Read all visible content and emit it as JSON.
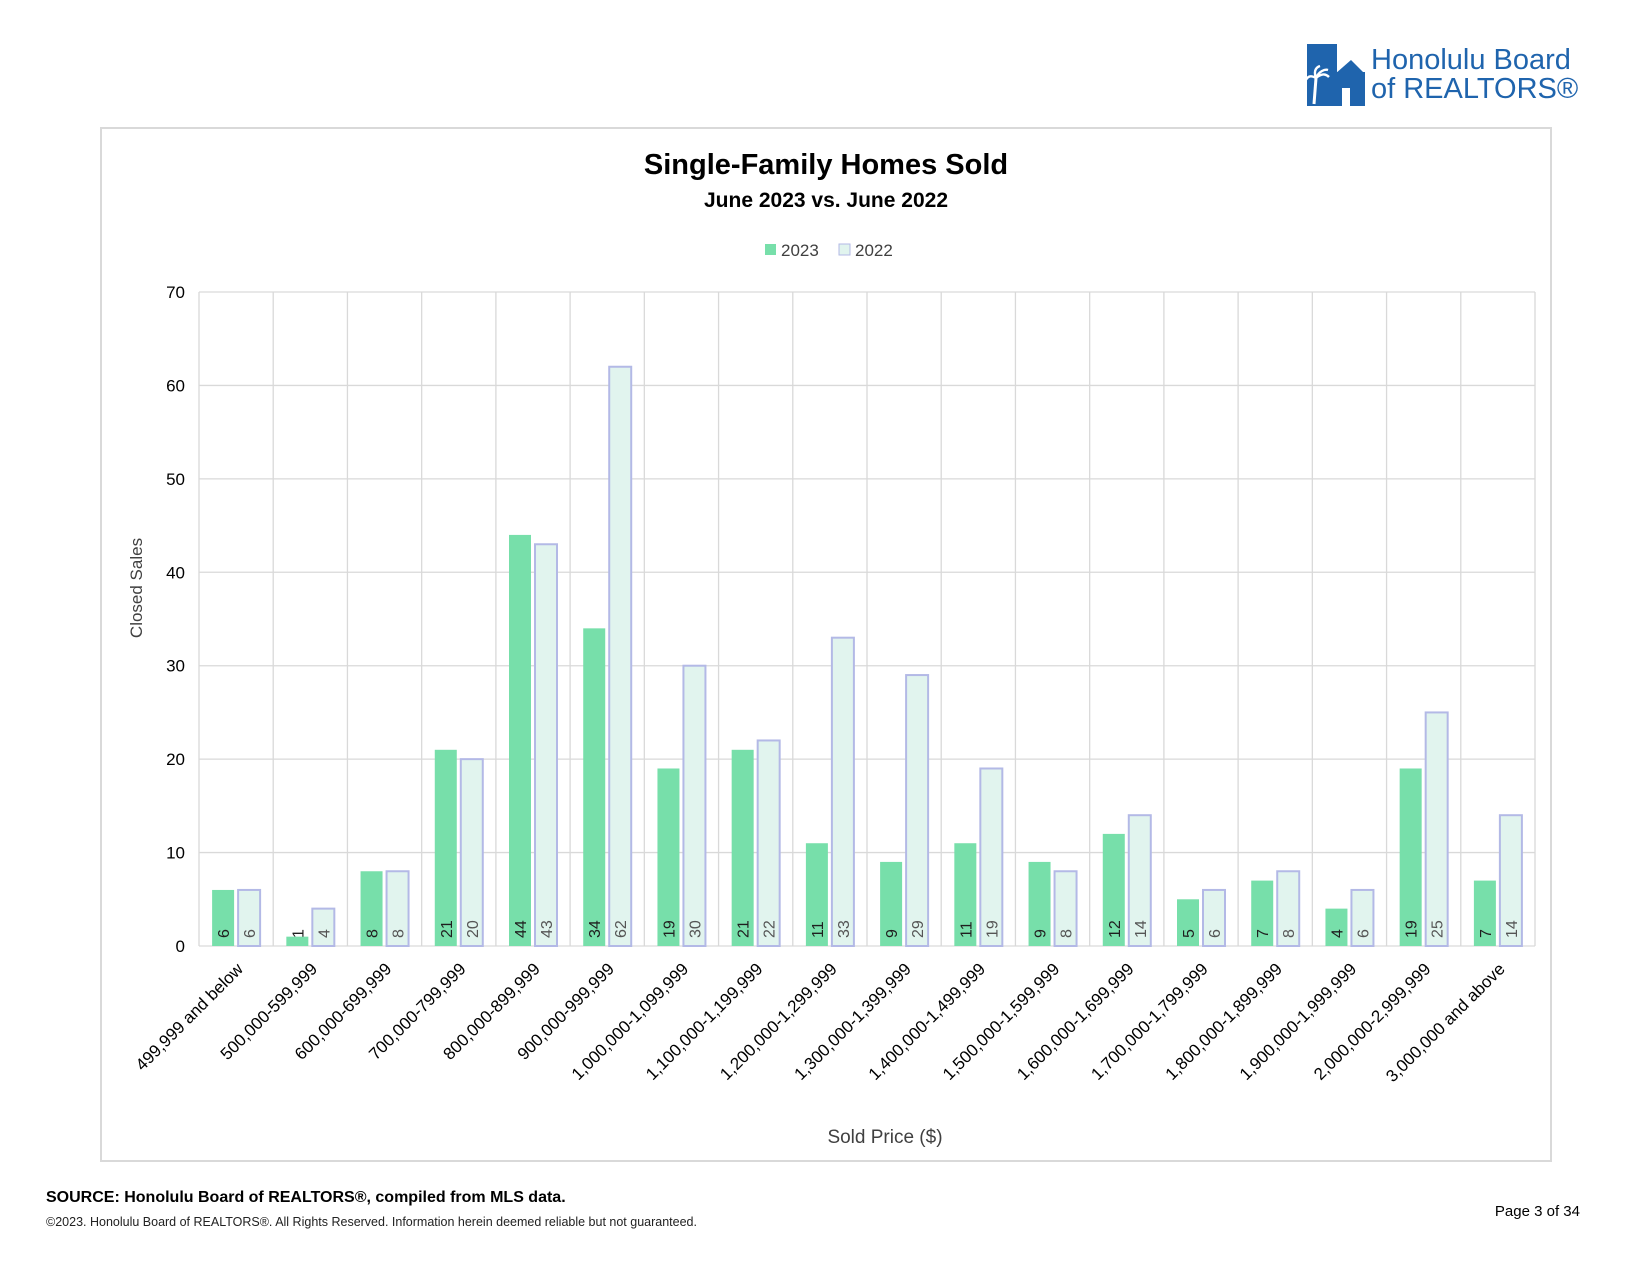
{
  "header": {
    "logo_line1": "Honolulu Board",
    "logo_line2": "of REALTORS®"
  },
  "chart_data": {
    "type": "bar",
    "title": "Single-Family Homes Sold",
    "subtitle": "June 2023 vs. June 2022",
    "xlabel": "Sold Price ($)",
    "ylabel": "Closed Sales",
    "ylim": [
      0,
      70
    ],
    "yticks": [
      0,
      10,
      20,
      30,
      40,
      50,
      60,
      70
    ],
    "grid": true,
    "legend_position": "top-center",
    "categories": [
      "499,999 and below",
      "500,000-599,999",
      "600,000-699,999",
      "700,000-799,999",
      "800,000-899,999",
      "900,000-999,999",
      "1,000,000-1,099,999",
      "1,100,000-1,199,999",
      "1,200,000-1,299,999",
      "1,300,000-1,399,999",
      "1,400,000-1,499,999",
      "1,500,000-1,599,999",
      "1,600,000-1,699,999",
      "1,700,000-1,799,999",
      "1,800,000-1,899,999",
      "1,900,000-1,999,999",
      "2,000,000-2,999,999",
      "3,000,000 and above"
    ],
    "series": [
      {
        "name": "2023",
        "color": "#77dfaa",
        "values": [
          6,
          1,
          8,
          21,
          44,
          34,
          19,
          21,
          11,
          9,
          11,
          9,
          12,
          5,
          7,
          4,
          19,
          7
        ]
      },
      {
        "name": "2022",
        "color": "#e1f4ee",
        "stroke": "#b3b9e6",
        "values": [
          6,
          4,
          8,
          20,
          43,
          62,
          30,
          22,
          33,
          29,
          19,
          8,
          14,
          6,
          8,
          6,
          25,
          14
        ]
      }
    ]
  },
  "footer": {
    "source": "SOURCE: Honolulu Board of REALTORS®, compiled from MLS data.",
    "copyright": "©2023. Honolulu Board of REALTORS®. All Rights Reserved. Information herein deemed reliable but not guaranteed.",
    "page": "Page 3 of 34"
  }
}
